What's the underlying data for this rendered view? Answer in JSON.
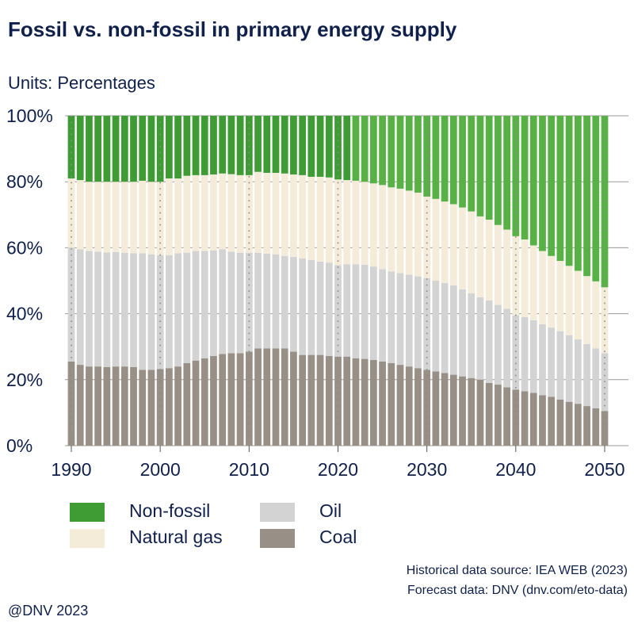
{
  "title": "Fossil vs. non-fossil in primary energy supply",
  "units_prefix": "Units:",
  "units_value": "Percentages",
  "source_historical": "Historical data source: IEA WEB (2023)",
  "source_forecast": "Forecast data: DNV (dnv.com/eto-data)",
  "copyright": "@DNV 2023",
  "legend": [
    {
      "label": "Non-fossil",
      "color": "#3f9c35"
    },
    {
      "label": "Natural gas",
      "color": "#f4ecd9"
    },
    {
      "label": "Oil",
      "color": "#d3d3d3"
    },
    {
      "label": "Coal",
      "color": "#988f86"
    }
  ],
  "chart_data": {
    "type": "bar",
    "stacked": true,
    "title": "Fossil vs. non-fossil in primary energy supply",
    "ylabel": "Percentages",
    "ylim": [
      0,
      100
    ],
    "yticks": [
      "0%",
      "20%",
      "40%",
      "60%",
      "80%",
      "100%"
    ],
    "xticks": [
      "1990",
      "2000",
      "2010",
      "2020",
      "2030",
      "2040",
      "2050"
    ],
    "grid": true,
    "historical_end": "2021",
    "forecast_start": "2022",
    "colors": {
      "Coal": "#988f86",
      "Oil": "#d3d3d3",
      "Natural gas": "#f4ecd9",
      "Non-fossil": "#3f9c35",
      "Non-fossil forecast": "#57b145"
    },
    "categories": [
      "1990",
      "1991",
      "1992",
      "1993",
      "1994",
      "1995",
      "1996",
      "1997",
      "1998",
      "1999",
      "2000",
      "2001",
      "2002",
      "2003",
      "2004",
      "2005",
      "2006",
      "2007",
      "2008",
      "2009",
      "2010",
      "2011",
      "2012",
      "2013",
      "2014",
      "2015",
      "2016",
      "2017",
      "2018",
      "2019",
      "2020",
      "2021",
      "2022",
      "2023",
      "2024",
      "2025",
      "2026",
      "2027",
      "2028",
      "2029",
      "2030",
      "2031",
      "2032",
      "2033",
      "2034",
      "2035",
      "2036",
      "2037",
      "2038",
      "2039",
      "2040",
      "2041",
      "2042",
      "2043",
      "2044",
      "2045",
      "2046",
      "2047",
      "2048",
      "2049",
      "2050"
    ],
    "series": [
      {
        "name": "Coal",
        "values": [
          25.5,
          24.5,
          24.0,
          24.0,
          23.8,
          24.0,
          24.0,
          23.8,
          23.0,
          23.0,
          23.2,
          23.5,
          24.0,
          25.0,
          25.8,
          26.5,
          27.2,
          27.8,
          28.0,
          28.0,
          28.5,
          29.5,
          29.5,
          29.5,
          29.5,
          28.5,
          27.5,
          27.5,
          27.5,
          27.2,
          27.0,
          27.0,
          26.5,
          26.3,
          26.0,
          25.5,
          25.0,
          24.5,
          24.0,
          23.5,
          23.0,
          22.5,
          22.0,
          21.5,
          21.0,
          20.5,
          20.0,
          19.0,
          18.5,
          17.7,
          17.0,
          16.5,
          16.0,
          15.3,
          14.8,
          14.0,
          13.3,
          12.7,
          12.0,
          11.3,
          10.5
        ]
      },
      {
        "name": "Oil",
        "values": [
          34.5,
          35.0,
          35.0,
          34.8,
          34.8,
          34.7,
          34.5,
          34.5,
          35.3,
          35.0,
          34.5,
          34.2,
          34.3,
          33.5,
          33.2,
          32.5,
          32.0,
          31.7,
          30.8,
          30.5,
          30.0,
          29.0,
          28.7,
          28.5,
          28.0,
          28.7,
          29.3,
          28.8,
          28.3,
          28.3,
          27.7,
          28.0,
          28.5,
          28.5,
          28.3,
          28.0,
          27.8,
          27.8,
          27.8,
          27.8,
          27.8,
          27.5,
          27.3,
          27.1,
          26.4,
          25.7,
          25.0,
          25.0,
          24.2,
          23.8,
          22.5,
          22.5,
          22.0,
          21.5,
          21.0,
          20.7,
          20.2,
          19.5,
          18.8,
          18.2,
          17.5
        ]
      },
      {
        "name": "Natural gas",
        "values": [
          21.0,
          21.0,
          21.0,
          21.2,
          21.4,
          21.3,
          21.5,
          21.7,
          22.0,
          22.0,
          22.3,
          23.3,
          22.7,
          23.3,
          23.0,
          23.0,
          23.0,
          23.0,
          23.5,
          23.5,
          23.5,
          24.5,
          24.5,
          24.7,
          25.0,
          25.0,
          25.2,
          25.2,
          25.7,
          25.8,
          26.0,
          25.5,
          25.3,
          25.2,
          25.2,
          25.5,
          25.5,
          25.6,
          25.5,
          25.4,
          24.7,
          24.8,
          24.7,
          24.6,
          24.8,
          24.8,
          24.5,
          24.5,
          24.2,
          24.0,
          24.0,
          23.5,
          22.7,
          22.2,
          21.7,
          21.3,
          21.0,
          20.8,
          20.6,
          20.3,
          20.0
        ]
      },
      {
        "name": "Non-fossil",
        "values": [
          19.0,
          19.5,
          20.0,
          20.0,
          20.0,
          20.0,
          20.0,
          20.0,
          19.7,
          20.0,
          20.0,
          19.0,
          19.0,
          18.2,
          18.0,
          18.0,
          17.8,
          17.5,
          17.7,
          18.0,
          18.0,
          17.0,
          17.3,
          17.3,
          17.5,
          17.8,
          18.0,
          18.5,
          18.5,
          18.7,
          19.3,
          19.5,
          19.7,
          20.0,
          20.5,
          21.0,
          21.7,
          22.1,
          22.7,
          23.3,
          24.5,
          25.2,
          26.0,
          26.8,
          27.8,
          29.0,
          30.5,
          31.5,
          33.1,
          34.5,
          36.5,
          37.5,
          39.3,
          41.0,
          42.5,
          44.0,
          45.5,
          47.0,
          48.6,
          50.2,
          52.0
        ]
      }
    ]
  }
}
